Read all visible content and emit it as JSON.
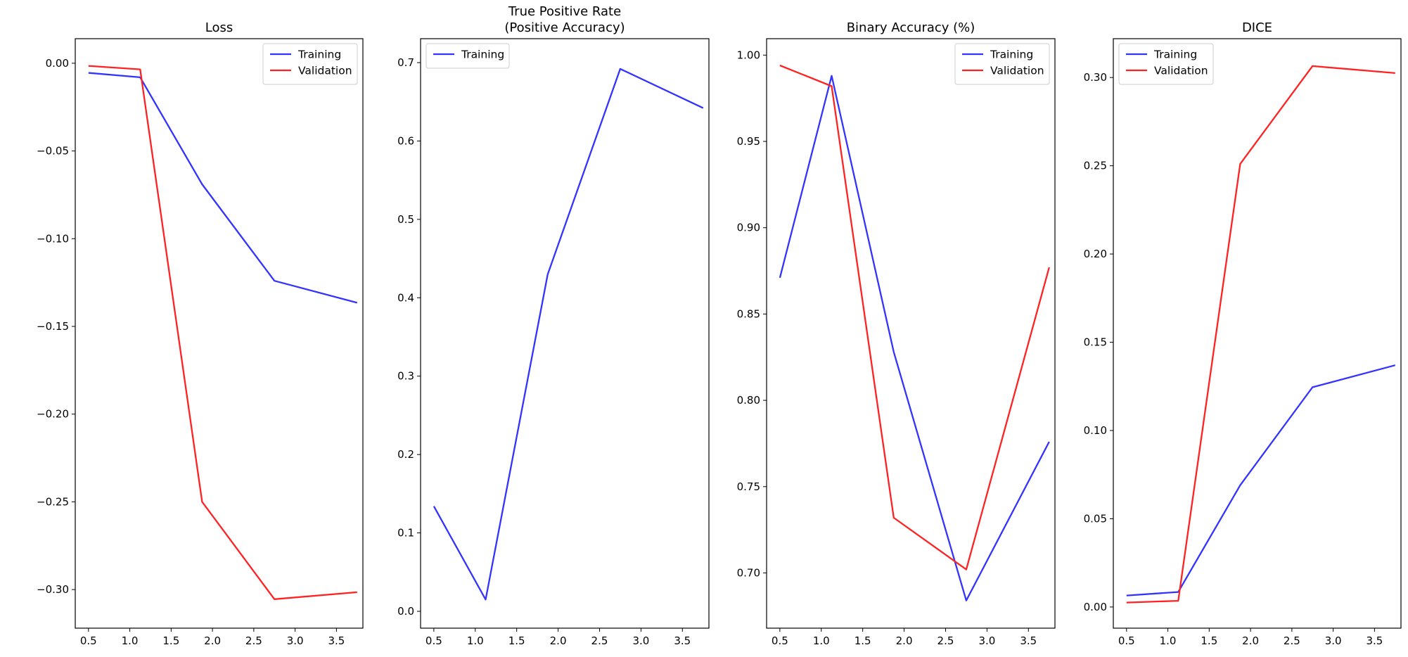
{
  "chart_data": [
    {
      "type": "line",
      "title": "Loss",
      "xlim": [
        0.34,
        3.82
      ],
      "ylim": [
        -0.322,
        0.014
      ],
      "xticks": [
        0.5,
        1.0,
        1.5,
        2.0,
        2.5,
        3.0,
        3.5
      ],
      "xtick_labels": [
        "0.5",
        "1.0",
        "1.5",
        "2.0",
        "2.5",
        "3.0",
        "3.5"
      ],
      "yticks": [
        0.0,
        -0.05,
        -0.1,
        -0.15,
        -0.2,
        -0.25,
        -0.3
      ],
      "ytick_labels": [
        "0.00",
        "−0.05",
        "−0.10",
        "−0.15",
        "−0.20",
        "−0.25",
        "−0.30"
      ],
      "legend_position": "top-right",
      "series": [
        {
          "name": "Training",
          "color": "#3333ff",
          "x": [
            0.5,
            1.125,
            1.875,
            2.75,
            3.75
          ],
          "y": [
            -0.0055,
            -0.008,
            -0.069,
            -0.124,
            -0.1365
          ]
        },
        {
          "name": "Validation",
          "color": "#ff2222",
          "x": [
            0.5,
            1.125,
            1.875,
            2.75,
            3.75
          ],
          "y": [
            -0.0015,
            -0.0035,
            -0.25,
            -0.3055,
            -0.3015
          ]
        }
      ]
    },
    {
      "type": "line",
      "title": "True Positive Rate\n(Positive Accuracy)",
      "xlim": [
        0.34,
        3.82
      ],
      "ylim": [
        -0.0215,
        0.7305
      ],
      "xticks": [
        0.5,
        1.0,
        1.5,
        2.0,
        2.5,
        3.0,
        3.5
      ],
      "xtick_labels": [
        "0.5",
        "1.0",
        "1.5",
        "2.0",
        "2.5",
        "3.0",
        "3.5"
      ],
      "yticks": [
        0.0,
        0.1,
        0.2,
        0.3,
        0.4,
        0.5,
        0.6,
        0.7
      ],
      "ytick_labels": [
        "0.0",
        "0.1",
        "0.2",
        "0.3",
        "0.4",
        "0.5",
        "0.6",
        "0.7"
      ],
      "legend_position": "top-left",
      "series": [
        {
          "name": "Training",
          "color": "#3333ff",
          "x": [
            0.5,
            1.125,
            1.875,
            2.75,
            3.75
          ],
          "y": [
            0.134,
            0.015,
            0.43,
            0.692,
            0.642
          ]
        }
      ]
    },
    {
      "type": "line",
      "title": "Binary Accuracy (%)",
      "xlim": [
        0.34,
        3.82
      ],
      "ylim": [
        0.668,
        1.0095
      ],
      "xticks": [
        0.5,
        1.0,
        1.5,
        2.0,
        2.5,
        3.0,
        3.5
      ],
      "xtick_labels": [
        "0.5",
        "1.0",
        "1.5",
        "2.0",
        "2.5",
        "3.0",
        "3.5"
      ],
      "yticks": [
        0.7,
        0.75,
        0.8,
        0.85,
        0.9,
        0.95,
        1.0
      ],
      "ytick_labels": [
        "0.70",
        "0.75",
        "0.80",
        "0.85",
        "0.90",
        "0.95",
        "1.00"
      ],
      "legend_position": "top-right",
      "series": [
        {
          "name": "Training",
          "color": "#3333ff",
          "x": [
            0.5,
            1.125,
            1.875,
            2.75,
            3.75
          ],
          "y": [
            0.871,
            0.988,
            0.828,
            0.684,
            0.776
          ]
        },
        {
          "name": "Validation",
          "color": "#ff2222",
          "x": [
            0.5,
            1.125,
            1.875,
            2.75,
            3.75
          ],
          "y": [
            0.994,
            0.982,
            0.732,
            0.702,
            0.877
          ]
        }
      ]
    },
    {
      "type": "line",
      "title": "DICE",
      "xlim": [
        0.34,
        3.82
      ],
      "ylim": [
        -0.012,
        0.322
      ],
      "xticks": [
        0.5,
        1.0,
        1.5,
        2.0,
        2.5,
        3.0,
        3.5
      ],
      "xtick_labels": [
        "0.5",
        "1.0",
        "1.5",
        "2.0",
        "2.5",
        "3.0",
        "3.5"
      ],
      "yticks": [
        0.0,
        0.05,
        0.1,
        0.15,
        0.2,
        0.25,
        0.3
      ],
      "ytick_labels": [
        "0.00",
        "0.05",
        "0.10",
        "0.15",
        "0.20",
        "0.25",
        "0.30"
      ],
      "legend_position": "top-left",
      "series": [
        {
          "name": "Training",
          "color": "#3333ff",
          "x": [
            0.5,
            1.125,
            1.875,
            2.75,
            3.75
          ],
          "y": [
            0.0065,
            0.0085,
            0.069,
            0.1245,
            0.137
          ]
        },
        {
          "name": "Validation",
          "color": "#ff2222",
          "x": [
            0.5,
            1.125,
            1.875,
            2.75,
            3.75
          ],
          "y": [
            0.0025,
            0.0035,
            0.251,
            0.3065,
            0.3025
          ]
        }
      ]
    }
  ]
}
